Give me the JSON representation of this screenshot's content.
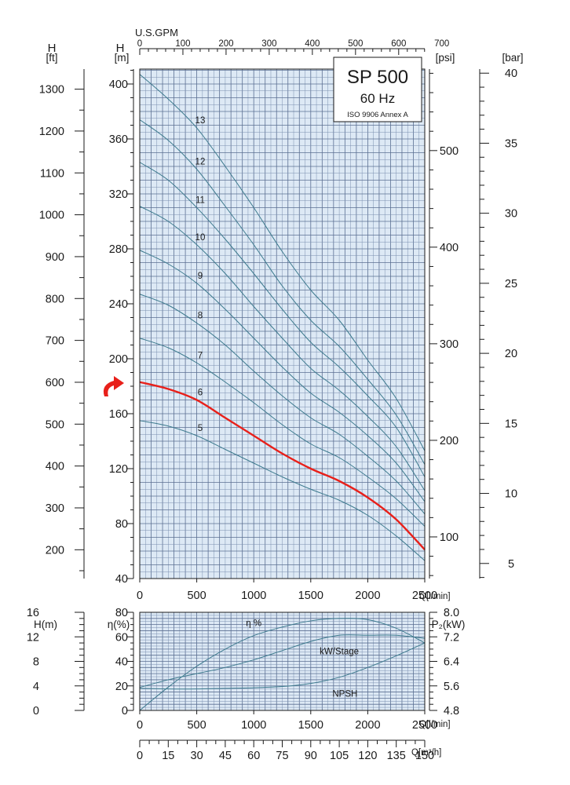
{
  "chart_data": [
    {
      "type": "line",
      "title": "SP 500",
      "subtitle": "60 Hz",
      "note": "ISO 9906 Annex A",
      "xlabel": "Q[l/min]",
      "x2label": "U.S.GPM",
      "ylabel": "H [m]",
      "ylabel_ft": "H [ft]",
      "ylabel_psi": "[psi]",
      "ylabel_bar": "[bar]",
      "xlim": [
        0,
        2500
      ],
      "ylim": [
        40,
        415
      ],
      "x_ticks": [
        0,
        500,
        1000,
        1500,
        2000,
        2500
      ],
      "gpm_ticks": [
        0,
        100,
        200,
        300,
        400,
        500,
        600,
        700
      ],
      "y_ticks": [
        40,
        80,
        120,
        160,
        200,
        240,
        280,
        320,
        360,
        400
      ],
      "ft_ticks": [
        200,
        300,
        400,
        500,
        600,
        700,
        800,
        900,
        1000,
        1100,
        1200,
        1300
      ],
      "psi_ticks": [
        100,
        200,
        300,
        400,
        500
      ],
      "bar_ticks": [
        5,
        10,
        15,
        20,
        25,
        30,
        35,
        40
      ],
      "grid": true,
      "highlight_stage": "6",
      "highlight_color": "#e8201a",
      "curve_color": "#3d7a8e",
      "grid_bg": "#dde9f5",
      "series": [
        {
          "name": "13",
          "x": [
            0,
            250,
            500,
            750,
            1000,
            1250,
            1500,
            1750,
            2000,
            2250,
            2500
          ],
          "y": [
            407,
            389,
            368,
            340,
            310,
            278,
            250,
            228,
            199,
            171,
            133
          ]
        },
        {
          "name": "12",
          "x": [
            0,
            250,
            500,
            750,
            1000,
            1250,
            1500,
            1750,
            2000,
            2250,
            2500
          ],
          "y": [
            374,
            359,
            338,
            311,
            283,
            253,
            228,
            209,
            185,
            159,
            123
          ]
        },
        {
          "name": "11",
          "x": [
            0,
            250,
            500,
            750,
            1000,
            1250,
            1500,
            1750,
            2000,
            2250,
            2500
          ],
          "y": [
            343,
            330,
            310,
            287,
            262,
            236,
            212,
            194,
            173,
            150,
            114
          ]
        },
        {
          "name": "10",
          "x": [
            0,
            250,
            500,
            750,
            1000,
            1250,
            1500,
            1750,
            2000,
            2250,
            2500
          ],
          "y": [
            311,
            300,
            283,
            262,
            238,
            215,
            193,
            177,
            158,
            136,
            104
          ]
        },
        {
          "name": "9",
          "x": [
            0,
            250,
            500,
            750,
            1000,
            1250,
            1500,
            1750,
            2000,
            2250,
            2500
          ],
          "y": [
            279,
            269,
            255,
            236,
            215,
            194,
            175,
            161,
            144,
            124,
            96
          ]
        },
        {
          "name": "8",
          "x": [
            0,
            250,
            500,
            750,
            1000,
            1250,
            1500,
            1750,
            2000,
            2250,
            2500
          ],
          "y": [
            247,
            239,
            226,
            210,
            191,
            173,
            157,
            145,
            129,
            111,
            87
          ]
        },
        {
          "name": "7",
          "x": [
            0,
            250,
            500,
            750,
            1000,
            1250,
            1500,
            1750,
            2000,
            2250,
            2500
          ],
          "y": [
            215,
            208,
            197,
            183,
            168,
            152,
            138,
            128,
            114,
            98,
            78
          ]
        },
        {
          "name": "6",
          "x": [
            0,
            250,
            500,
            750,
            1000,
            1250,
            1500,
            1750,
            2000,
            2250,
            2500
          ],
          "y": [
            183,
            178,
            170,
            157,
            144,
            131,
            120,
            111,
            99,
            83,
            61
          ]
        },
        {
          "name": "5",
          "x": [
            0,
            250,
            500,
            750,
            1000,
            1250,
            1500,
            1750,
            2000,
            2250,
            2500
          ],
          "y": [
            155,
            151,
            144,
            134,
            124,
            114,
            105,
            97,
            86,
            71,
            53
          ]
        }
      ]
    },
    {
      "type": "line",
      "xlabel": "Q[l/min]",
      "x2label": "Q[m³/h]",
      "ylabel_h": "H(m)",
      "ylabel_eta": "η(%)",
      "ylabel_p2": "P₂(kW)",
      "xlim": [
        0,
        2500
      ],
      "eta_lim": [
        0,
        80
      ],
      "h_lim": [
        0,
        16
      ],
      "p2_lim": [
        4.8,
        8.0
      ],
      "x_ticks": [
        0,
        500,
        1000,
        1500,
        2000,
        2500
      ],
      "m3h_ticks": [
        0,
        15,
        30,
        45,
        60,
        75,
        90,
        105,
        120,
        135,
        150
      ],
      "h_ticks": [
        0,
        4,
        8,
        12,
        16
      ],
      "eta_ticks": [
        0,
        20,
        40,
        60,
        80
      ],
      "p2_ticks": [
        "4.8",
        "5.6",
        "6.4",
        "7.2",
        "8.0"
      ],
      "grid": true,
      "series": [
        {
          "name": "η %",
          "x": [
            0,
            250,
            500,
            750,
            1000,
            1250,
            1500,
            1750,
            2000,
            2250,
            2500
          ],
          "y": [
            0,
            19,
            36,
            50,
            61,
            68,
            73,
            75,
            74,
            67,
            55
          ]
        },
        {
          "name": "kW/Stage",
          "x": [
            0,
            250,
            500,
            750,
            1000,
            1250,
            1500,
            1750,
            2000,
            2250,
            2500
          ],
          "y": [
            5.55,
            5.8,
            6.0,
            6.2,
            6.45,
            6.75,
            7.05,
            7.25,
            7.25,
            7.25,
            7.15
          ]
        },
        {
          "name": "NPSH",
          "x": [
            0,
            250,
            500,
            750,
            1000,
            1250,
            1500,
            1750,
            2000,
            2250,
            2500
          ],
          "y": [
            3.6,
            3.5,
            3.5,
            3.6,
            3.7,
            3.9,
            4.4,
            5.4,
            7.0,
            8.9,
            11.0
          ]
        }
      ]
    }
  ]
}
